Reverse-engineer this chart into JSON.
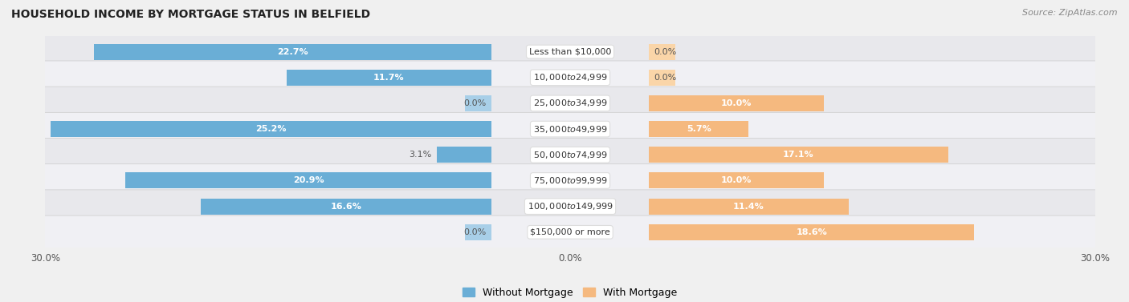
{
  "title": "HOUSEHOLD INCOME BY MORTGAGE STATUS IN BELFIELD",
  "source": "Source: ZipAtlas.com",
  "categories": [
    "Less than $10,000",
    "$10,000 to $24,999",
    "$25,000 to $34,999",
    "$35,000 to $49,999",
    "$50,000 to $74,999",
    "$75,000 to $99,999",
    "$100,000 to $149,999",
    "$150,000 or more"
  ],
  "without_mortgage": [
    22.7,
    11.7,
    0.0,
    25.2,
    3.1,
    20.9,
    16.6,
    0.0
  ],
  "with_mortgage": [
    0.0,
    0.0,
    10.0,
    5.7,
    17.1,
    10.0,
    11.4,
    18.6
  ],
  "color_without": "#6aaed6",
  "color_with": "#f5b97f",
  "color_without_light": "#a8cfe8",
  "color_with_light": "#fad5a8",
  "axis_max": 30.0,
  "bg_outer": "#f0f0f0",
  "row_colors": [
    "#e8e8ec",
    "#f0f0f4"
  ],
  "legend_without": "Without Mortgage",
  "legend_with": "With Mortgage",
  "title_fontsize": 10,
  "source_fontsize": 8,
  "bar_height": 0.62,
  "label_fontsize": 8.0,
  "cat_fontsize": 8.0
}
